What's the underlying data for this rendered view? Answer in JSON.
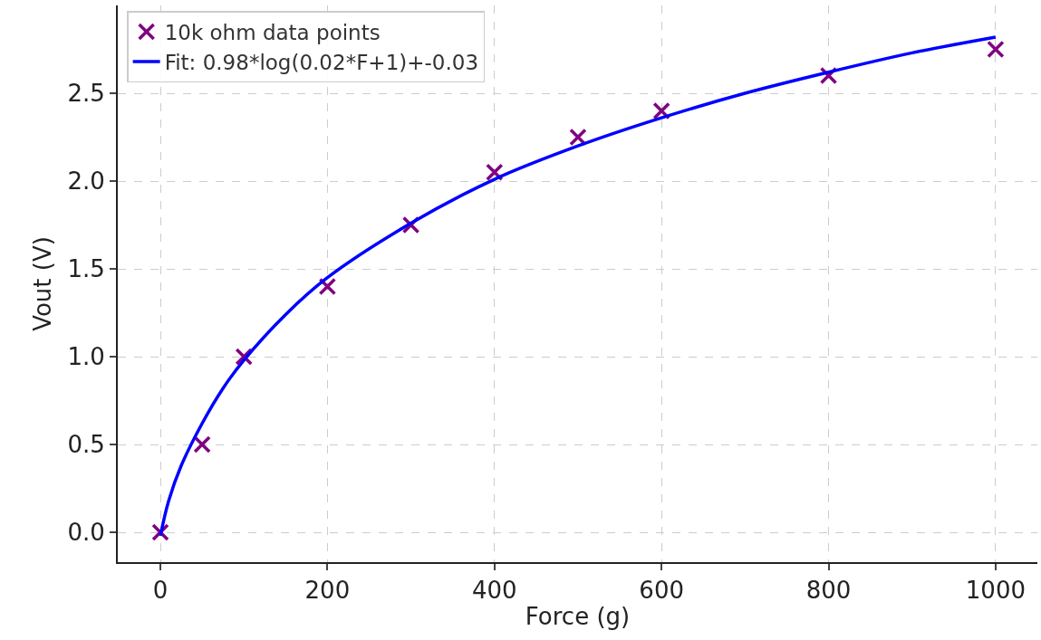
{
  "chart_data": {
    "type": "scatter",
    "xlabel": "Force (g)",
    "ylabel": "Vout (V)",
    "xlim": [
      -51,
      1050
    ],
    "xticks": [
      0,
      200,
      400,
      600,
      800,
      1000
    ],
    "ylim": [
      -0.17,
      3.0
    ],
    "yticks": [
      {
        "value": 0,
        "label": "0.0"
      },
      0.5,
      {
        "value": 1,
        "label": "1.0"
      },
      1.5,
      {
        "value": 2,
        "label": "2.0"
      },
      2.5
    ],
    "grid": true,
    "legend": "top left",
    "series": [
      {
        "name": "10k ohm data points",
        "type": "scatter",
        "marker": "cross",
        "color": "#800080",
        "x": [
          0,
          50,
          100,
          200,
          300,
          400,
          500,
          600,
          800,
          1000
        ],
        "values": [
          0,
          0.5,
          1.0,
          1.4,
          1.75,
          2.05,
          2.25,
          2.4,
          2.6,
          2.75
        ]
      },
      {
        "name": "Fit: 0.98*log(0.02*F+1)+-0.03",
        "type": "line",
        "line_style": "solid",
        "color": "#0000ff",
        "x": [
          0,
          10,
          25,
          50,
          75,
          100,
          150,
          200,
          300,
          400,
          500,
          600,
          700,
          800,
          900,
          1000
        ],
        "values": [
          -0.02,
          0.18,
          0.38,
          0.62,
          0.82,
          0.98,
          1.24,
          1.45,
          1.76,
          2.01,
          2.2,
          2.36,
          2.5,
          2.62,
          2.73,
          2.82
        ]
      }
    ]
  }
}
